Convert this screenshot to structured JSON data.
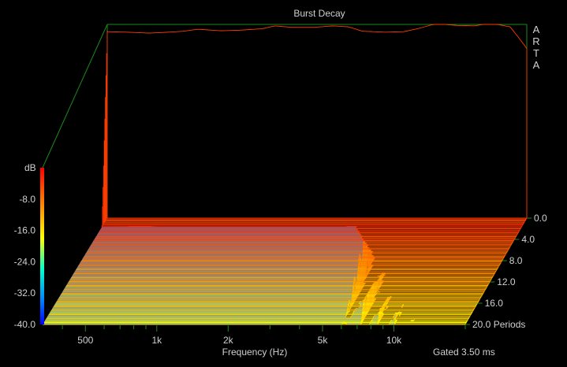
{
  "chart_data": {
    "type": "waterfall-3d",
    "title": "Burst Decay",
    "xlabel": "Frequency (Hz)",
    "zlabel": "dB",
    "gate_note": "Gated 3.50 ms",
    "brand": [
      "A",
      "R",
      "T",
      "A"
    ],
    "x_scale": "log",
    "xlim": [
      330,
      20000
    ],
    "x_ticks": [
      {
        "value": 500,
        "label": "500"
      },
      {
        "value": 1000,
        "label": "1k"
      },
      {
        "value": 2000,
        "label": "2k"
      },
      {
        "value": 5000,
        "label": "5k"
      },
      {
        "value": 10000,
        "label": "10k"
      }
    ],
    "zlim": [
      -40,
      0
    ],
    "z_ticks": [
      {
        "value": -8,
        "label": "-8.0"
      },
      {
        "value": -16,
        "label": "-16.0"
      },
      {
        "value": -24,
        "label": "-24.0"
      },
      {
        "value": -32,
        "label": "-32.0"
      },
      {
        "value": -40,
        "label": "-40.0"
      }
    ],
    "ylim": [
      0,
      20
    ],
    "y_unit": "Periods",
    "y_ticks": [
      {
        "value": 0,
        "label": "0.0"
      },
      {
        "value": 4,
        "label": "4.0"
      },
      {
        "value": 8,
        "label": "8.0"
      },
      {
        "value": 12,
        "label": "12.0"
      },
      {
        "value": 16,
        "label": "16.0"
      },
      {
        "value": 20,
        "label": "20.0 Periods"
      }
    ],
    "initial_response": {
      "frequency_hz": [
        330,
        400,
        500,
        600,
        700,
        800,
        1000,
        1200,
        1500,
        1700,
        2000,
        2500,
        3000,
        3500,
        4000,
        5000,
        6000,
        7000,
        8000,
        9000,
        10000,
        12000,
        13000,
        15000,
        17000,
        19000,
        20000
      ],
      "level_db": [
        -1.5,
        -1.6,
        -1.8,
        -1.6,
        -1.4,
        -1.0,
        -1.3,
        -1.2,
        -0.9,
        -0.3,
        -0.6,
        -0.6,
        -0.3,
        -0.5,
        -1.4,
        -1.6,
        -1.5,
        -0.8,
        0.0,
        0.0,
        -0.2,
        -0.3,
        0.0,
        0.0,
        -0.5,
        -3.5,
        -5.0
      ]
    }
  }
}
